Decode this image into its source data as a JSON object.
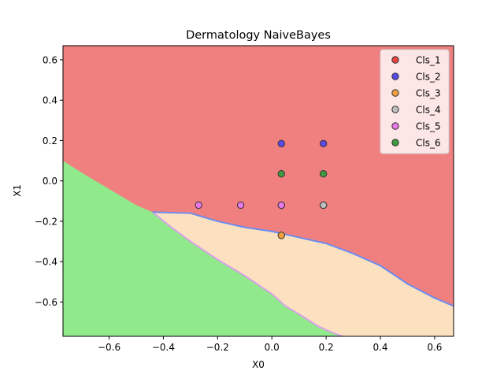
{
  "chart_data": {
    "type": "scatter",
    "title": "Dermatology NaiveBayes",
    "xlabel": "X0",
    "ylabel": "X1",
    "xlim": [
      -0.77,
      0.67
    ],
    "ylim": [
      -0.77,
      0.67
    ],
    "xticks": [
      -0.6,
      -0.4,
      -0.2,
      0.0,
      0.2,
      0.4,
      0.6
    ],
    "yticks": [
      -0.6,
      -0.4,
      -0.2,
      0.0,
      0.2,
      0.4,
      0.6
    ],
    "xtick_labels": [
      "−0.6",
      "−0.4",
      "−0.2",
      "0.0",
      "0.2",
      "0.4",
      "0.6"
    ],
    "ytick_labels": [
      "−0.6",
      "−0.4",
      "−0.2",
      "0.0",
      "0.2",
      "0.4",
      "0.6"
    ],
    "legend_position": "top-right",
    "grid": false,
    "decision_regions": [
      {
        "class": "Cls_1",
        "color": "#f08080",
        "boundary": [
          [
            -0.77,
            0.1
          ],
          [
            -0.7,
            0.04
          ],
          [
            -0.6,
            -0.04
          ],
          [
            -0.5,
            -0.12
          ],
          [
            -0.44,
            -0.155
          ],
          [
            -0.3,
            -0.16
          ],
          [
            -0.2,
            -0.2
          ],
          [
            -0.1,
            -0.23
          ],
          [
            0.0,
            -0.25
          ],
          [
            0.1,
            -0.28
          ],
          [
            0.2,
            -0.31
          ],
          [
            0.3,
            -0.36
          ],
          [
            0.4,
            -0.42
          ],
          [
            0.5,
            -0.51
          ],
          [
            0.6,
            -0.58
          ],
          [
            0.67,
            -0.62
          ]
        ]
      },
      {
        "class": "Cls_3",
        "color": "#fce1c0",
        "boundary": [
          [
            -0.44,
            -0.155
          ],
          [
            -0.38,
            -0.22
          ],
          [
            -0.3,
            -0.3
          ],
          [
            -0.2,
            -0.39
          ],
          [
            -0.1,
            -0.47
          ],
          [
            0.0,
            -0.56
          ],
          [
            0.05,
            -0.62
          ],
          [
            0.1,
            -0.66
          ],
          [
            0.17,
            -0.72
          ],
          [
            0.22,
            -0.75
          ],
          [
            0.26,
            -0.77
          ]
        ]
      },
      {
        "class": "Cls_6",
        "color": "#90ea8b"
      }
    ],
    "series": [
      {
        "name": "Cls_1",
        "color": "#e8463f",
        "points": []
      },
      {
        "name": "Cls_2",
        "color": "#5b48e8",
        "points": [
          [
            0.035,
            0.185
          ],
          [
            0.19,
            0.185
          ]
        ]
      },
      {
        "name": "Cls_3",
        "color": "#f0a040",
        "points": [
          [
            0.035,
            -0.27
          ],
          [
            0.19,
            -0.12
          ]
        ]
      },
      {
        "name": "Cls_4",
        "color": "#bdbdbd",
        "points": [
          [
            0.035,
            -0.12
          ],
          [
            0.19,
            -0.12
          ]
        ]
      },
      {
        "name": "Cls_5",
        "color": "#e878e8",
        "points": [
          [
            -0.27,
            -0.12
          ],
          [
            -0.115,
            -0.12
          ],
          [
            0.035,
            -0.12
          ]
        ]
      },
      {
        "name": "Cls_6",
        "color": "#3f9a3f",
        "points": [
          [
            0.035,
            0.035
          ],
          [
            0.19,
            0.035
          ]
        ]
      }
    ]
  }
}
